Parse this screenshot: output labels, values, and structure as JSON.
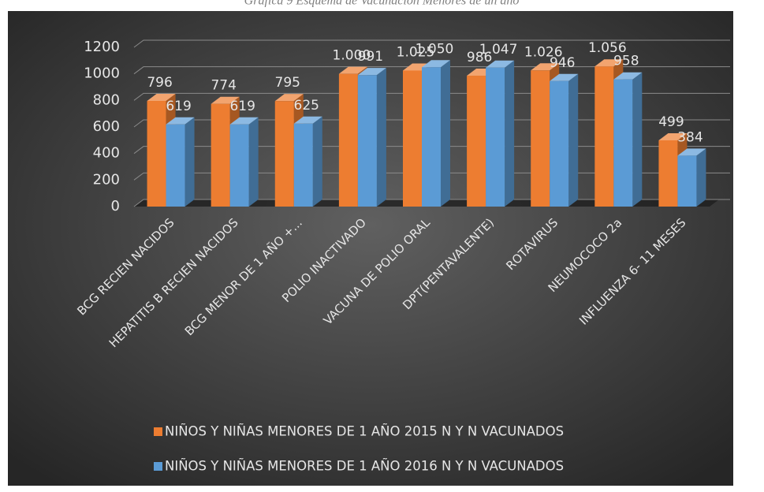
{
  "chart_data": {
    "type": "bar3d",
    "title": "Gráfica 9 Esquema de Vacunación Menores de un año",
    "categories": [
      "BCG RECIEN NACIDOS",
      "HEPATITIS B RECIEN NACIDOS",
      "BCG MENOR DE 1 AÑO +...",
      "POLIO INACTIVADO",
      "VACUNA DE POLIO ORAL",
      "DPT(PENTAVALENTE)",
      "ROTAVIRUS",
      "NEUMOCOCO 2a",
      "INFLUENZA  6- 11 MESES"
    ],
    "series": [
      {
        "name": "NIÑOS Y NIÑAS MENORES DE 1 AÑO 2015 N Y N VACUNADOS",
        "color": "#ED7D31",
        "values": [
          796,
          774,
          795,
          1000,
          1025,
          986,
          1026,
          1056,
          499
        ],
        "value_labels": [
          "796",
          "774",
          "795",
          "1.000",
          "1.025",
          "986",
          "1.026",
          "1.056",
          "499"
        ]
      },
      {
        "name": "NIÑOS Y NIÑAS MENORES DE 1 AÑO 2016 N Y N VACUNADOS",
        "color": "#5B9BD5",
        "values": [
          619,
          619,
          625,
          991,
          1050,
          1047,
          946,
          958,
          384
        ],
        "value_labels": [
          "619",
          "619",
          "625",
          "991",
          "1.050",
          "1.047",
          "946",
          "958",
          "384"
        ]
      }
    ],
    "ylim": [
      0,
      1200
    ],
    "yticks": [
      0,
      200,
      400,
      600,
      800,
      1000,
      1200
    ],
    "grid": true,
    "legend": "bottom"
  }
}
